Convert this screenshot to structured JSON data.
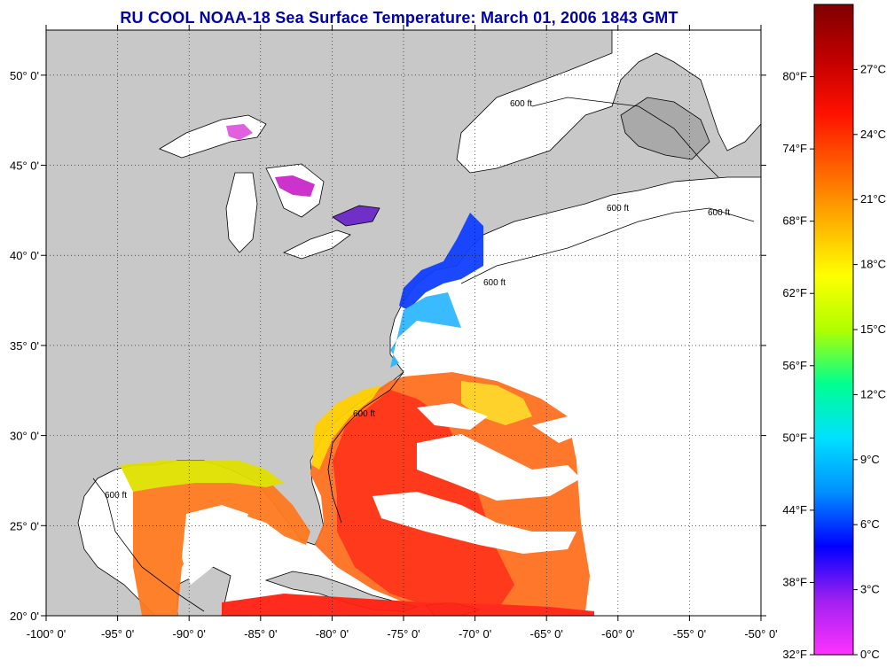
{
  "title": "RU COOL  NOAA-18  Sea Surface Temperature:  March 01, 2006 1843 GMT",
  "map": {
    "lon_range": [
      -100,
      -50
    ],
    "lat_range": [
      20,
      52.5
    ],
    "lon_ticks": [
      -100,
      -95,
      -90,
      -85,
      -80,
      -75,
      -70,
      -65,
      -60,
      -55,
      -50
    ],
    "lat_ticks": [
      20,
      25,
      30,
      35,
      40,
      45,
      50
    ],
    "lon_labels": [
      "-100° 0'",
      "-95° 0'",
      "-90° 0'",
      "-85° 0'",
      "-80° 0'",
      "-75° 0'",
      "-70° 0'",
      "-65° 0'",
      "-60° 0'",
      "-55° 0'",
      "-50° 0'"
    ],
    "lat_labels": [
      "20° 0'",
      "25° 0'",
      "30° 0'",
      "35° 0'",
      "40° 0'",
      "45° 0'",
      "50° 0'"
    ],
    "grid": "dotted",
    "land_color": "#c8c8c8",
    "contour_label": "600 ft"
  },
  "colorbar": {
    "fahrenheit_labels": [
      "32°F",
      "38°F",
      "44°F",
      "50°F",
      "56°F",
      "62°F",
      "68°F",
      "74°F",
      "80°F"
    ],
    "celsius_labels": [
      "0°C",
      "3°C",
      "6°C",
      "9°C",
      "12°C",
      "15°C",
      "18°C",
      "21°C",
      "24°C",
      "27°C"
    ],
    "colors": [
      "#ff33ff",
      "#a020f0",
      "#0000ff",
      "#0090ff",
      "#00e0ff",
      "#00ff90",
      "#b0ff00",
      "#ffff00",
      "#ffb000",
      "#ff6000",
      "#ff1000",
      "#c00000",
      "#800000"
    ]
  }
}
